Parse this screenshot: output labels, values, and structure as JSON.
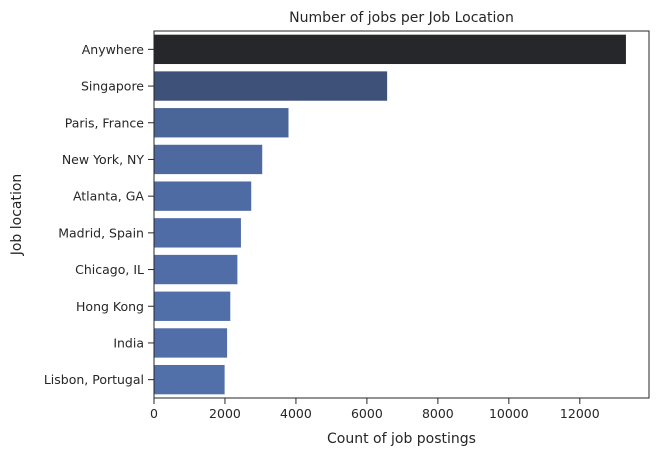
{
  "chart_data": {
    "type": "bar",
    "orientation": "horizontal",
    "title": "Number of jobs per Job Location",
    "xlabel": "Count of job postings",
    "ylabel": "Job location",
    "categories": [
      "Anywhere",
      "Singapore",
      "Paris, France",
      "New York, NY",
      "Atlanta, GA",
      "Madrid, Spain",
      "Chicago, IL",
      "Hong Kong",
      "India",
      "Lisbon, Portugal"
    ],
    "values": [
      13300,
      6570,
      3790,
      3050,
      2740,
      2450,
      2350,
      2150,
      2060,
      1990
    ],
    "xlim": [
      0,
      13950
    ],
    "xticks": [
      0,
      2000,
      4000,
      6000,
      8000,
      10000,
      12000
    ],
    "grid": false,
    "colors": [
      "#26272b",
      "#3e5178",
      "#4a6597",
      "#4d69a0",
      "#4e6ba4",
      "#4f6ca6",
      "#506da7",
      "#506ea8",
      "#516ea9",
      "#5170aa"
    ]
  }
}
